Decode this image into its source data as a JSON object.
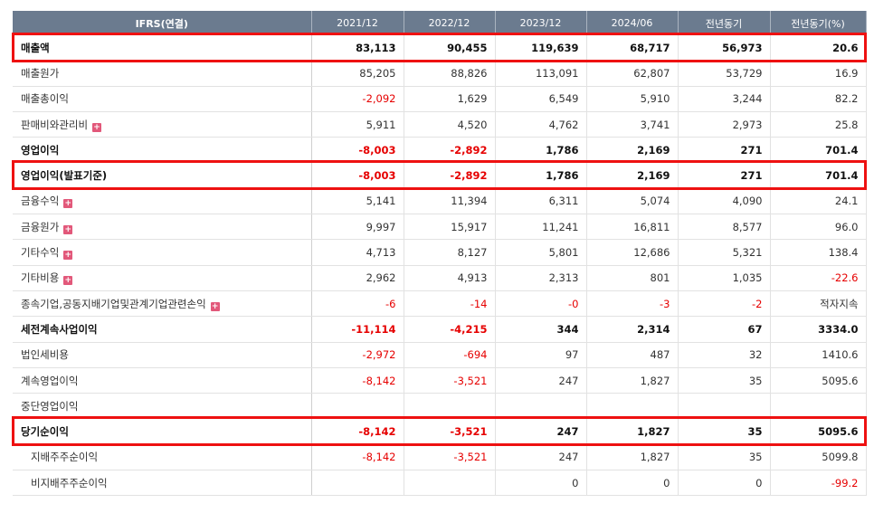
{
  "headers": [
    "IFRS(연결)",
    "2021/12",
    "2022/12",
    "2023/12",
    "2024/06",
    "전년동기",
    "전년동기(%)"
  ],
  "rows": [
    {
      "label": "매출액",
      "bold": true,
      "expand": false,
      "sub": false,
      "values": [
        "83,113",
        "90,455",
        "119,639",
        "68,717",
        "56,973",
        "20.6"
      ]
    },
    {
      "label": "매출원가",
      "bold": false,
      "expand": false,
      "sub": false,
      "values": [
        "85,205",
        "88,826",
        "113,091",
        "62,807",
        "53,729",
        "16.9"
      ]
    },
    {
      "label": "매출총이익",
      "bold": false,
      "expand": false,
      "sub": false,
      "values": [
        "-2,092",
        "1,629",
        "6,549",
        "5,910",
        "3,244",
        "82.2"
      ]
    },
    {
      "label": "판매비와관리비",
      "bold": false,
      "expand": true,
      "sub": false,
      "values": [
        "5,911",
        "4,520",
        "4,762",
        "3,741",
        "2,973",
        "25.8"
      ]
    },
    {
      "label": "영업이익",
      "bold": true,
      "expand": false,
      "sub": false,
      "values": [
        "-8,003",
        "-2,892",
        "1,786",
        "2,169",
        "271",
        "701.4"
      ]
    },
    {
      "label": "영업이익(발표기준)",
      "bold": true,
      "expand": false,
      "sub": false,
      "values": [
        "-8,003",
        "-2,892",
        "1,786",
        "2,169",
        "271",
        "701.4"
      ]
    },
    {
      "label": "금융수익",
      "bold": false,
      "expand": true,
      "sub": false,
      "values": [
        "5,141",
        "11,394",
        "6,311",
        "5,074",
        "4,090",
        "24.1"
      ]
    },
    {
      "label": "금융원가",
      "bold": false,
      "expand": true,
      "sub": false,
      "values": [
        "9,997",
        "15,917",
        "11,241",
        "16,811",
        "8,577",
        "96.0"
      ]
    },
    {
      "label": "기타수익",
      "bold": false,
      "expand": true,
      "sub": false,
      "values": [
        "4,713",
        "8,127",
        "5,801",
        "12,686",
        "5,321",
        "138.4"
      ]
    },
    {
      "label": "기타비용",
      "bold": false,
      "expand": true,
      "sub": false,
      "values": [
        "2,962",
        "4,913",
        "2,313",
        "801",
        "1,035",
        "-22.6"
      ]
    },
    {
      "label": "종속기업,공동지배기업및관계기업관련손익",
      "bold": false,
      "expand": true,
      "sub": false,
      "values": [
        "-6",
        "-14",
        "-0",
        "-3",
        "-2",
        "적자지속"
      ]
    },
    {
      "label": "세전계속사업이익",
      "bold": true,
      "expand": false,
      "sub": false,
      "values": [
        "-11,114",
        "-4,215",
        "344",
        "2,314",
        "67",
        "3334.0"
      ]
    },
    {
      "label": "법인세비용",
      "bold": false,
      "expand": false,
      "sub": false,
      "values": [
        "-2,972",
        "-694",
        "97",
        "487",
        "32",
        "1410.6"
      ]
    },
    {
      "label": "계속영업이익",
      "bold": false,
      "expand": false,
      "sub": false,
      "values": [
        "-8,142",
        "-3,521",
        "247",
        "1,827",
        "35",
        "5095.6"
      ]
    },
    {
      "label": "중단영업이익",
      "bold": false,
      "expand": false,
      "sub": false,
      "values": [
        "",
        "",
        "",
        "",
        "",
        ""
      ]
    },
    {
      "label": "당기순이익",
      "bold": true,
      "expand": false,
      "sub": false,
      "values": [
        "-8,142",
        "-3,521",
        "247",
        "1,827",
        "35",
        "5095.6"
      ]
    },
    {
      "label": "지배주주순이익",
      "bold": false,
      "expand": false,
      "sub": true,
      "values": [
        "-8,142",
        "-3,521",
        "247",
        "1,827",
        "35",
        "5099.8"
      ]
    },
    {
      "label": "비지배주주순이익",
      "bold": false,
      "expand": false,
      "sub": true,
      "values": [
        "",
        "",
        "0",
        "0",
        "0",
        "-99.2"
      ]
    }
  ],
  "highlighted_rows": [
    "매출액",
    "영업이익(발표기준)",
    "당기순이익"
  ],
  "colors": {
    "header_bg": "#6b7b8f",
    "negative": "#e60000",
    "highlight_border": "#ee1111",
    "expand_icon": "#e2587a"
  },
  "expand_icon": "plus-square-icon"
}
